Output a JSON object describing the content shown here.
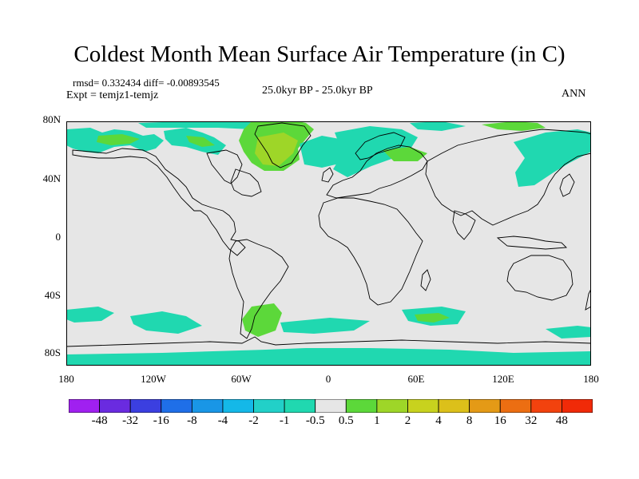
{
  "title": "Coldest Month Mean Surface Air Temperature (in C)",
  "stats_line": "rmsd= 0.332434 diff= -0.00893545",
  "expt_line": "Expt = temjz1-temjz",
  "period_line": "25.0kyr BP - 25.0kyr BP",
  "season": "ANN",
  "lat_labels": [
    "80N",
    "40N",
    "0",
    "40S",
    "80S"
  ],
  "lon_labels": [
    "180",
    "120W",
    "60W",
    "0",
    "60E",
    "120E",
    "180"
  ],
  "colorbar": {
    "labels": [
      "-48",
      "-32",
      "-16",
      "-8",
      "-4",
      "-2",
      "-1",
      "-0.5",
      "0.5",
      "1",
      "2",
      "4",
      "8",
      "16",
      "32",
      "48"
    ],
    "colors": [
      "#a020f0",
      "#6a2be0",
      "#3b3fe0",
      "#1f6fe8",
      "#1996e6",
      "#14b8e8",
      "#22d0c8",
      "#20d8b0",
      "#e6e6e6",
      "#5cd83a",
      "#9ed628",
      "#c8d21e",
      "#dcc01a",
      "#e49a16",
      "#ec6e12",
      "#f2420e",
      "#f02a08"
    ]
  },
  "colors": {
    "land_bg": "#e6e6e6",
    "anomaly_cyan": "#20d8b0",
    "anomaly_green": "#5cd83a",
    "anomaly_yellow": "#9ed628"
  }
}
